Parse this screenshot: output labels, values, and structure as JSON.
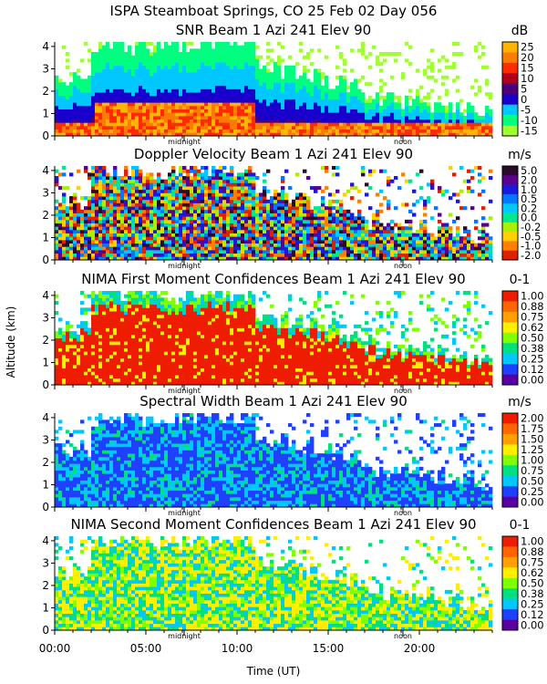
{
  "chart_data": {
    "type": "heatmap",
    "main_title": "ISPA Steamboat Springs, CO   25 Feb 02 Day 056",
    "ylabel": "Altitude (km)",
    "xlabel": "Time (UT)",
    "x_ticks": [
      "00:00",
      "05:00",
      "10:00",
      "15:00",
      "20:00"
    ],
    "x_tick_hours": [
      0,
      5,
      10,
      15,
      20
    ],
    "x_range": [
      0,
      24
    ],
    "y_range": [
      0,
      4.2
    ],
    "y_ticks": [
      "0",
      "1",
      "2",
      "3",
      "4"
    ],
    "markers": [
      {
        "label": "midnight",
        "hour": 7.1
      },
      {
        "label": "noon",
        "hour": 19.1
      }
    ],
    "panels": [
      {
        "title": "SNR Beam 1 Azi 241 Elev 90",
        "units": "dB",
        "colorbar_labels": [
          "25",
          "20",
          "15",
          "10",
          "5",
          "0",
          "-5",
          "-10",
          "-15"
        ],
        "colorbar_colors": [
          "#ffb400",
          "#ff7a00",
          "#ff2a00",
          "#b0001a",
          "#4a0078",
          "#1a00cc",
          "#00c8ff",
          "#00ff80",
          "#a0ff30"
        ]
      },
      {
        "title": "Doppler Velocity Beam 1 Azi 241 Elev 90",
        "units": "m/s",
        "colorbar_labels": [
          "5.0",
          "2.0",
          "1.0",
          "0.5",
          "0.2",
          "0.0",
          "-0.2",
          "-0.5",
          "-1.0",
          "-2.0"
        ],
        "colorbar_colors": [
          "#2a0a2a",
          "#5a0090",
          "#1a1adc",
          "#0078ff",
          "#00c8ff",
          "#00e890",
          "#a8f000",
          "#ffd000",
          "#ff8000",
          "#e02000"
        ]
      },
      {
        "title": "NIMA First Moment Confidences Beam 1 Azi 241 Elev 90",
        "units": "0-1",
        "colorbar_labels": [
          "1.00",
          "0.88",
          "0.75",
          "0.62",
          "0.50",
          "0.38",
          "0.25",
          "0.12",
          "0.00"
        ],
        "colorbar_colors": [
          "#ee1c00",
          "#ff6600",
          "#ffa000",
          "#ffee00",
          "#80ff00",
          "#00e080",
          "#00c8ff",
          "#2040ff",
          "#5a00a0"
        ]
      },
      {
        "title": "Spectral Width Beam 1 Azi 241 Elev 90",
        "units": "m/s",
        "colorbar_labels": [
          "2.00",
          "1.75",
          "1.50",
          "1.25",
          "1.00",
          "0.75",
          "0.50",
          "0.25",
          "0.00"
        ],
        "colorbar_colors": [
          "#ee1c00",
          "#ff6600",
          "#ffa000",
          "#ffee00",
          "#80ff00",
          "#00e080",
          "#00c8ff",
          "#2040ff",
          "#5a00a0"
        ]
      },
      {
        "title": "NIMA Second Moment Confidences Beam 1 Azi 241 Elev 90",
        "units": "0-1",
        "colorbar_labels": [
          "1.00",
          "0.88",
          "0.75",
          "0.62",
          "0.50",
          "0.38",
          "0.25",
          "0.12",
          "0.00"
        ],
        "colorbar_colors": [
          "#ee1c00",
          "#ff6600",
          "#ffa000",
          "#ffee00",
          "#80ff00",
          "#00e080",
          "#00c8ff",
          "#2040ff",
          "#5a00a0"
        ]
      }
    ]
  }
}
